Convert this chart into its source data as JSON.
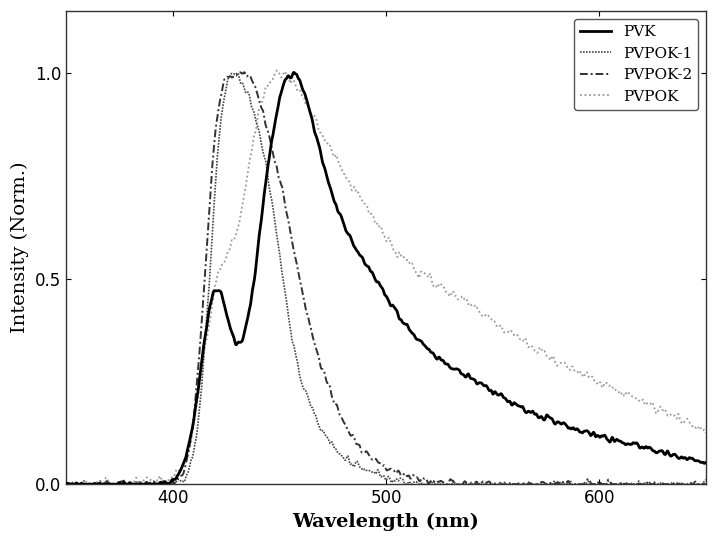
{
  "title": "",
  "xlabel": "Wavelength (nm)",
  "ylabel": "Intensity (Norm.)",
  "xlim": [
    350,
    650
  ],
  "ylim": [
    0.0,
    1.15
  ],
  "yticks": [
    0.0,
    0.5,
    1.0
  ],
  "xticks": [
    400,
    500,
    600
  ],
  "background_color": "#ffffff",
  "legend_loc": "upper right",
  "legend_fontsize": 11,
  "axis_fontsize": 14,
  "tick_fontsize": 12
}
